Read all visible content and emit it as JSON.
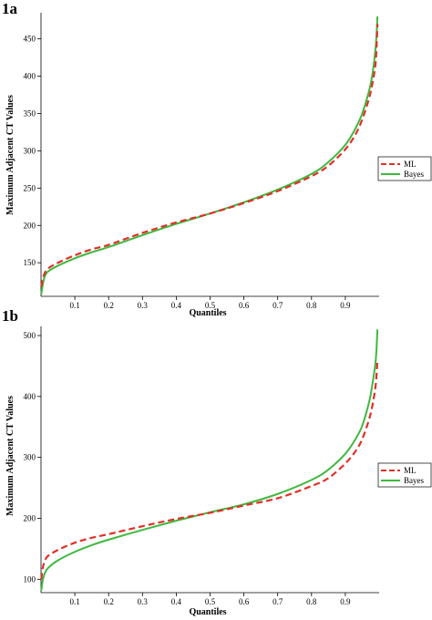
{
  "chart_data": [
    {
      "type": "line",
      "panel_label": "1a",
      "title": "",
      "xlabel": "Quantiles",
      "ylabel": "Maximum Adjacent CT Values",
      "xlim": [
        0,
        1
      ],
      "ylim": [
        105,
        485
      ],
      "x_ticks": [
        0.1,
        0.2,
        0.3,
        0.4,
        0.5,
        0.6,
        0.7,
        0.8,
        0.9
      ],
      "y_ticks": [
        150,
        200,
        250,
        300,
        350,
        400,
        450
      ],
      "grid": false,
      "legend_position": "right",
      "series": [
        {
          "name": "ML",
          "color": "#e03028",
          "dash": true,
          "x": [
            0.001,
            0.005,
            0.01,
            0.02,
            0.05,
            0.1,
            0.15,
            0.2,
            0.3,
            0.4,
            0.5,
            0.6,
            0.7,
            0.8,
            0.85,
            0.9,
            0.93,
            0.95,
            0.97,
            0.98,
            0.99,
            0.995
          ],
          "y": [
            118,
            128,
            135,
            142,
            150,
            160,
            168,
            174,
            190,
            204,
            216,
            230,
            246,
            266,
            280,
            302,
            322,
            342,
            370,
            390,
            420,
            470
          ]
        },
        {
          "name": "Bayes",
          "color": "#3fb83f",
          "dash": false,
          "x": [
            0.001,
            0.005,
            0.01,
            0.02,
            0.05,
            0.1,
            0.15,
            0.2,
            0.3,
            0.4,
            0.5,
            0.6,
            0.7,
            0.8,
            0.85,
            0.9,
            0.93,
            0.95,
            0.97,
            0.98,
            0.99,
            0.995
          ],
          "y": [
            108,
            120,
            130,
            138,
            146,
            156,
            164,
            171,
            187,
            202,
            216,
            231,
            248,
            269,
            285,
            308,
            330,
            350,
            380,
            402,
            440,
            480
          ]
        }
      ]
    },
    {
      "type": "line",
      "panel_label": "1b",
      "title": "",
      "xlabel": "Quantiles",
      "ylabel": "Maximum Adjacent CT Values",
      "xlim": [
        0,
        1
      ],
      "ylim": [
        78,
        515
      ],
      "x_ticks": [
        0.1,
        0.2,
        0.3,
        0.4,
        0.5,
        0.6,
        0.7,
        0.8,
        0.9
      ],
      "y_ticks": [
        100,
        200,
        300,
        400,
        500
      ],
      "grid": false,
      "legend_position": "right",
      "series": [
        {
          "name": "ML",
          "color": "#e03028",
          "dash": true,
          "x": [
            0.001,
            0.005,
            0.01,
            0.02,
            0.05,
            0.1,
            0.15,
            0.2,
            0.3,
            0.4,
            0.5,
            0.6,
            0.7,
            0.8,
            0.85,
            0.9,
            0.93,
            0.95,
            0.97,
            0.98,
            0.99,
            0.995
          ],
          "y": [
            100,
            118,
            128,
            138,
            148,
            160,
            168,
            174,
            187,
            199,
            209,
            221,
            233,
            253,
            266,
            290,
            310,
            330,
            362,
            385,
            420,
            460
          ]
        },
        {
          "name": "Bayes",
          "color": "#3fb83f",
          "dash": false,
          "x": [
            0.001,
            0.005,
            0.01,
            0.02,
            0.05,
            0.1,
            0.15,
            0.2,
            0.3,
            0.4,
            0.5,
            0.6,
            0.7,
            0.8,
            0.85,
            0.9,
            0.93,
            0.95,
            0.97,
            0.98,
            0.99,
            0.995
          ],
          "y": [
            82,
            98,
            108,
            118,
            131,
            145,
            156,
            165,
            181,
            196,
            210,
            223,
            240,
            263,
            280,
            306,
            330,
            352,
            390,
            420,
            460,
            510
          ]
        }
      ]
    }
  ]
}
